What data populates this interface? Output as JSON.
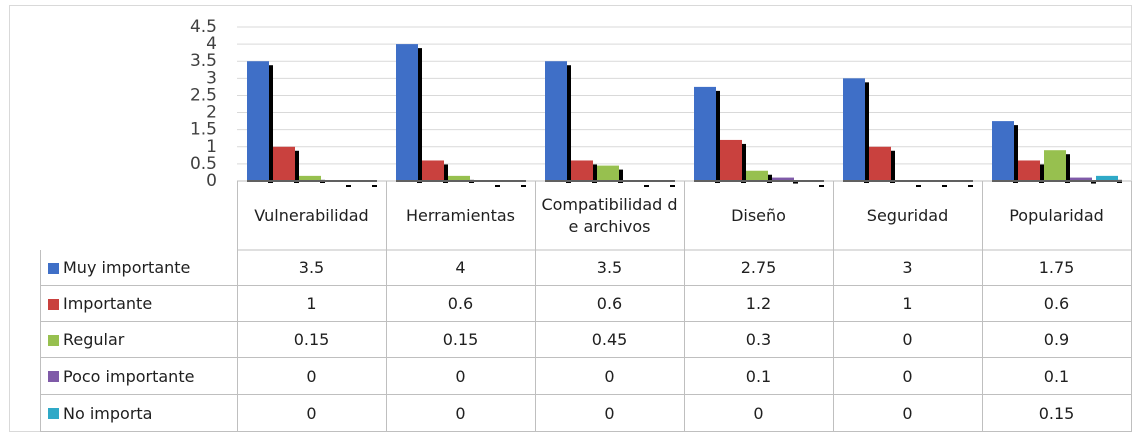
{
  "chart_data": {
    "type": "bar",
    "categories": [
      "Vulnerabilidad",
      "Herramientas",
      "Compatibilidad de archivos",
      "Diseño",
      "Seguridad",
      "Popularidad"
    ],
    "series": [
      {
        "name": "Muy importante",
        "color": "#3f6fc7",
        "values": [
          3.5,
          4,
          3.5,
          2.75,
          3,
          1.75
        ]
      },
      {
        "name": "Importante",
        "color": "#c9413e",
        "values": [
          1,
          0.6,
          0.6,
          1.2,
          1,
          0.6
        ]
      },
      {
        "name": "Regular",
        "color": "#97c04f",
        "values": [
          0.15,
          0.15,
          0.45,
          0.3,
          0,
          0.9
        ]
      },
      {
        "name": "Poco importante",
        "color": "#7f5aa8",
        "values": [
          0,
          0,
          0,
          0.1,
          0,
          0.1
        ]
      },
      {
        "name": "No importa",
        "color": "#2fa9c7",
        "values": [
          0,
          0,
          0,
          0,
          0,
          0.15
        ]
      }
    ],
    "ylim": [
      0,
      4.5
    ],
    "yticks": [
      0,
      0.5,
      1,
      1.5,
      2,
      2.5,
      3,
      3.5,
      4,
      4.5
    ],
    "grid": true,
    "data_table": true
  }
}
